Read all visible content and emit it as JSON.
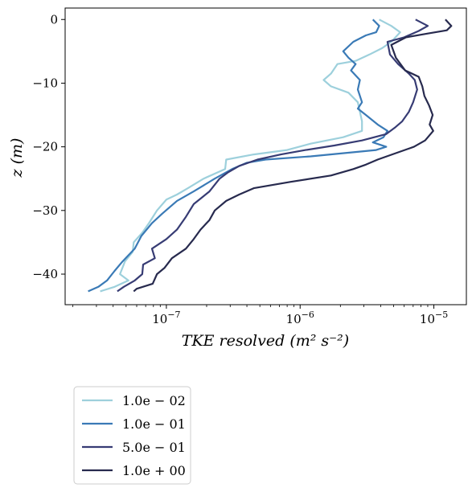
{
  "chart_data": {
    "type": "line",
    "title": "",
    "xlabel": "TKE resolved (m² s⁻²)",
    "ylabel": "z (m)",
    "xscale": "log",
    "xlim": [
      1.75e-08,
      1.75e-05
    ],
    "ylim": [
      -44.8,
      1.8
    ],
    "x_ticks": [
      {
        "value": 1e-07,
        "base": "10",
        "exp": "−7"
      },
      {
        "value": 1e-06,
        "base": "10",
        "exp": "−6"
      },
      {
        "value": 1e-05,
        "base": "10",
        "exp": "−5"
      }
    ],
    "y_ticks": [
      {
        "value": 0,
        "label": "0"
      },
      {
        "value": -10,
        "label": "−10"
      },
      {
        "value": -20,
        "label": "−20"
      },
      {
        "value": -30,
        "label": "−30"
      },
      {
        "value": -40,
        "label": "−40"
      }
    ],
    "grid": false,
    "legend": {
      "placement": "below-left"
    },
    "series": [
      {
        "name": "1.0e − 02",
        "color": "#9dd0dc",
        "points": [
          [
            3.9e-06,
            0.0
          ],
          [
            4.8e-06,
            -1.0
          ],
          [
            5.6e-06,
            -2.0
          ],
          [
            4.8e-06,
            -3.5
          ],
          [
            4.1e-06,
            -4.5
          ],
          [
            3.3e-06,
            -5.5
          ],
          [
            2.6e-06,
            -6.5
          ],
          [
            1.9e-06,
            -7.0
          ],
          [
            1.7e-06,
            -8.5
          ],
          [
            1.5e-06,
            -9.5
          ],
          [
            1.7e-06,
            -10.5
          ],
          [
            2.3e-06,
            -11.5
          ],
          [
            2.7e-06,
            -13.0
          ],
          [
            2.9e-06,
            -16.0
          ],
          [
            2.9e-06,
            -17.5
          ],
          [
            2.1e-06,
            -18.5
          ],
          [
            1.2e-06,
            -19.5
          ],
          [
            8e-07,
            -20.5
          ],
          [
            4.5e-07,
            -21.2
          ],
          [
            2.8e-07,
            -22.0
          ],
          [
            2.75e-07,
            -23.5
          ],
          [
            1.9e-07,
            -25.0
          ],
          [
            1.45e-07,
            -26.5
          ],
          [
            1.2e-07,
            -27.5
          ],
          [
            1e-07,
            -28.3
          ],
          [
            8.5e-08,
            -30.0
          ],
          [
            7.4e-08,
            -32.0
          ],
          [
            6.6e-08,
            -33.5
          ],
          [
            5.7e-08,
            -35.0
          ],
          [
            5.6e-08,
            -36.5
          ],
          [
            4.9e-08,
            -38.0
          ],
          [
            4.5e-08,
            -40.0
          ],
          [
            5.2e-08,
            -41.0
          ],
          [
            4.1e-08,
            -42.0
          ],
          [
            3.2e-08,
            -42.7
          ]
        ]
      },
      {
        "name": "1.0e − 01",
        "color": "#3a7ab6",
        "points": [
          [
            3.5e-06,
            0.0
          ],
          [
            3.9e-06,
            -1.0
          ],
          [
            3.7e-06,
            -2.0
          ],
          [
            3.1e-06,
            -2.5
          ],
          [
            2.5e-06,
            -3.5
          ],
          [
            2.1e-06,
            -5.0
          ],
          [
            2.3e-06,
            -6.0
          ],
          [
            2.6e-06,
            -7.0
          ],
          [
            2.4e-06,
            -8.0
          ],
          [
            2.8e-06,
            -9.5
          ],
          [
            2.7e-06,
            -11.0
          ],
          [
            2.9e-06,
            -13.0
          ],
          [
            2.7e-06,
            -14.0
          ],
          [
            3.1e-06,
            -15.0
          ],
          [
            3.8e-06,
            -16.5
          ],
          [
            4.5e-06,
            -17.5
          ],
          [
            4.2e-06,
            -18.5
          ],
          [
            3.5e-06,
            -19.3
          ],
          [
            4.4e-06,
            -20.0
          ],
          [
            3.7e-06,
            -20.5
          ],
          [
            1.2e-06,
            -21.5
          ],
          [
            5.5e-07,
            -22.0
          ],
          [
            4e-07,
            -22.5
          ],
          [
            3.1e-07,
            -23.5
          ],
          [
            2.3e-07,
            -25.0
          ],
          [
            1.6e-07,
            -27.0
          ],
          [
            1.2e-07,
            -28.5
          ],
          [
            9.3e-08,
            -30.5
          ],
          [
            7.8e-08,
            -32.0
          ],
          [
            6.5e-08,
            -34.0
          ],
          [
            5.8e-08,
            -36.0
          ],
          [
            4.7e-08,
            -38.0
          ],
          [
            4.1e-08,
            -39.5
          ],
          [
            3.6e-08,
            -41.0
          ],
          [
            3.1e-08,
            -42.0
          ],
          [
            2.6e-08,
            -42.7
          ]
        ]
      },
      {
        "name": "5.0e − 01",
        "color": "#373c74",
        "points": [
          [
            7.3e-06,
            0.0
          ],
          [
            9e-06,
            -1.0
          ],
          [
            7.7e-06,
            -1.8
          ],
          [
            6e-06,
            -2.8
          ],
          [
            4.5e-06,
            -3.5
          ],
          [
            4.7e-06,
            -5.5
          ],
          [
            5.4e-06,
            -7.0
          ],
          [
            6.5e-06,
            -8.5
          ],
          [
            7.2e-06,
            -9.5
          ],
          [
            7.5e-06,
            -11.0
          ],
          [
            7e-06,
            -13.0
          ],
          [
            6.5e-06,
            -14.5
          ],
          [
            5.8e-06,
            -16.0
          ],
          [
            5.1e-06,
            -17.0
          ],
          [
            4.4e-06,
            -18.0
          ],
          [
            2.9e-06,
            -19.0
          ],
          [
            1.8e-06,
            -19.8
          ],
          [
            1.1e-06,
            -20.5
          ],
          [
            7.2e-07,
            -21.2
          ],
          [
            4.8e-07,
            -22.0
          ],
          [
            3.5e-07,
            -23.0
          ],
          [
            2.9e-07,
            -24.0
          ],
          [
            2.5e-07,
            -25.0
          ],
          [
            2.1e-07,
            -27.0
          ],
          [
            1.6e-07,
            -29.0
          ],
          [
            1.4e-07,
            -31.0
          ],
          [
            1.2e-07,
            -33.0
          ],
          [
            1e-07,
            -34.5
          ],
          [
            7.8e-08,
            -36.0
          ],
          [
            8.2e-08,
            -37.5
          ],
          [
            6.7e-08,
            -38.5
          ],
          [
            6.6e-08,
            -40.0
          ],
          [
            5.8e-08,
            -41.0
          ],
          [
            4.8e-08,
            -42.0
          ],
          [
            4.3e-08,
            -42.7
          ]
        ]
      },
      {
        "name": "1.0e + 00",
        "color": "#272a4e",
        "points": [
          [
            1.22e-05,
            0.0
          ],
          [
            1.35e-05,
            -1.0
          ],
          [
            1.25e-05,
            -1.7
          ],
          [
            9e-06,
            -2.2
          ],
          [
            6.2e-06,
            -2.8
          ],
          [
            4.8e-06,
            -4.0
          ],
          [
            5.2e-06,
            -6.0
          ],
          [
            6.1e-06,
            -8.0
          ],
          [
            7.7e-06,
            -9.0
          ],
          [
            8.2e-06,
            -10.5
          ],
          [
            8.5e-06,
            -12.0
          ],
          [
            9.2e-06,
            -13.5
          ],
          [
            9.8e-06,
            -15.0
          ],
          [
            9.3e-06,
            -16.5
          ],
          [
            9.9e-06,
            -17.5
          ],
          [
            8.6e-06,
            -19.0
          ],
          [
            7.1e-06,
            -20.0
          ],
          [
            5.2e-06,
            -21.0
          ],
          [
            3.8e-06,
            -22.0
          ],
          [
            3.1e-06,
            -22.8
          ],
          [
            2.5e-06,
            -23.5
          ],
          [
            1.7e-06,
            -24.5
          ],
          [
            8.5e-07,
            -25.5
          ],
          [
            4.5e-07,
            -26.5
          ],
          [
            3.5e-07,
            -27.5
          ],
          [
            2.8e-07,
            -28.5
          ],
          [
            2.3e-07,
            -30.0
          ],
          [
            2.1e-07,
            -31.5
          ],
          [
            1.8e-07,
            -33.0
          ],
          [
            1.6e-07,
            -34.5
          ],
          [
            1.4e-07,
            -36.0
          ],
          [
            1.1e-07,
            -37.5
          ],
          [
            9.7e-08,
            -39.0
          ],
          [
            8.5e-08,
            -40.0
          ],
          [
            7.9e-08,
            -41.5
          ],
          [
            6e-08,
            -42.3
          ],
          [
            5.7e-08,
            -42.7
          ]
        ]
      }
    ]
  }
}
